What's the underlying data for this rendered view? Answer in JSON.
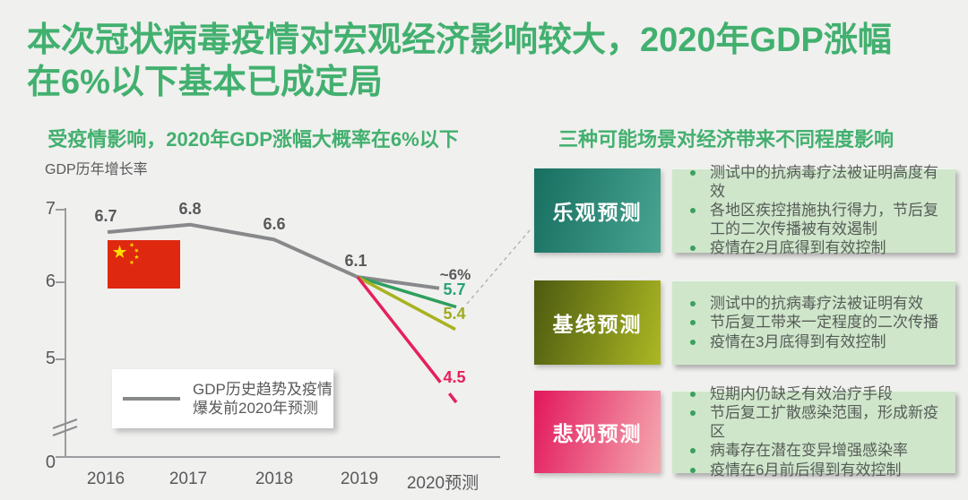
{
  "title": {
    "line1": "本次冠状病毒疫情对宏观经济影响较大，2020年GDP涨幅",
    "line2": "在6%以下基本已成定局",
    "color": "#42b06f"
  },
  "left_panel": {
    "subtitle": "受疫情影响，2020年GDP涨幅大概率在6%以下",
    "axis_label": "GDP历年增长率",
    "yticks": [
      "7",
      "6",
      "5",
      "0"
    ],
    "x_labels": [
      "2016",
      "2017",
      "2018",
      "2019",
      "2020预测"
    ],
    "point_labels": {
      "p2016": "6.7",
      "p2017": "6.8",
      "p2018": "6.6",
      "p2019": "6.1",
      "hist_end": "~6%",
      "optimistic": "5.7",
      "baseline": "5.4",
      "pessimistic": "4.5"
    },
    "legend": {
      "line1": "GDP历史趋势及疫情",
      "line2": "爆发前2020年预测"
    },
    "flag": {
      "name": "china-flag",
      "red": "#de2910",
      "yellow": "#ffde00"
    }
  },
  "right_panel": {
    "subtitle": "三种可能场景对经济带来不同程度影响",
    "panel_bg": "#cfe6cb",
    "bullet_color": "#3aa05e",
    "scenarios": [
      {
        "label": "乐观预测",
        "gradient": [
          "#166f60",
          "#4aa492"
        ],
        "bullets": [
          "测试中的抗病毒疗法被证明高度有效",
          "各地区疾控措施执行得力，节后复工的二次传播被有效遏制",
          "疫情在2月底得到有效控制"
        ]
      },
      {
        "label": "基线预测",
        "gradient": [
          "#4d5a10",
          "#abb823"
        ],
        "bullets": [
          "测试中的抗病毒疗法被证明有效",
          "节后复工带来一定程度的二次传播",
          "疫情在3月底得到有效控制"
        ]
      },
      {
        "label": "悲观预测",
        "gradient": [
          "#e2175c",
          "#f5a9b0"
        ],
        "bullets": [
          "短期内仍缺乏有效治疗手段",
          "节后复工扩散感染范围，形成新疫区",
          "病毒存在潜在变异增强感染率",
          "疫情在6月前后得到有效控制"
        ]
      }
    ]
  },
  "chart_data": {
    "type": "line",
    "title": "受疫情影响，2020年GDP涨幅大概率在6%以下",
    "ylabel": "GDP历年增长率",
    "categories": [
      "2016",
      "2017",
      "2018",
      "2019",
      "2020预测"
    ],
    "yticks": [
      7,
      6,
      5,
      0
    ],
    "ylim": [
      0,
      7
    ],
    "axis_break_between": [
      0,
      5
    ],
    "grid": false,
    "legend_position": "bottom-left",
    "series": [
      {
        "name": "GDP历史趋势及疫情爆发前2020年预测",
        "color": "#87898b",
        "values": [
          6.7,
          6.8,
          6.6,
          6.1,
          5.95
        ],
        "end_label": "~6%"
      },
      {
        "name": "乐观预测",
        "color": "#2e9f5d",
        "values": [
          null,
          null,
          null,
          6.1,
          5.7
        ],
        "end_label": "5.7"
      },
      {
        "name": "基线预测",
        "color": "#a8b21f",
        "values": [
          null,
          null,
          null,
          6.1,
          5.4
        ],
        "end_label": "5.4"
      },
      {
        "name": "悲观预测",
        "color": "#e5205c",
        "values": [
          null,
          null,
          null,
          6.1,
          4.5
        ],
        "end_label": "4.5"
      }
    ],
    "annotation": "虚线连接乐观预测情景框与乐观预测线"
  }
}
